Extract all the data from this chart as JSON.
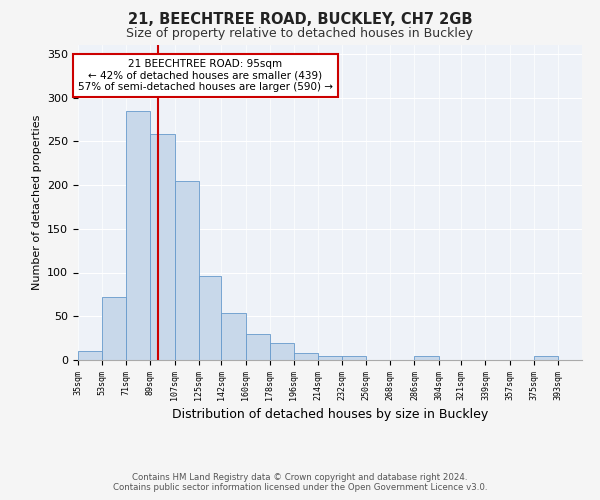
{
  "title_line1": "21, BEECHTREE ROAD, BUCKLEY, CH7 2GB",
  "title_line2": "Size of property relative to detached houses in Buckley",
  "xlabel": "Distribution of detached houses by size in Buckley",
  "ylabel": "Number of detached properties",
  "bin_edges": [
    35,
    53,
    71,
    89,
    107,
    125,
    142,
    160,
    178,
    196,
    214,
    232,
    250,
    268,
    286,
    304,
    321,
    339,
    357,
    375,
    393
  ],
  "bin_heights": [
    10,
    72,
    285,
    258,
    205,
    96,
    54,
    30,
    20,
    8,
    5,
    5,
    0,
    0,
    5,
    0,
    0,
    0,
    0,
    5
  ],
  "bar_color": "#c8d8ea",
  "bar_edge_color": "#6699cc",
  "property_size": 95,
  "property_line_color": "#cc0000",
  "annotation_text": "21 BEECHTREE ROAD: 95sqm\n← 42% of detached houses are smaller (439)\n57% of semi-detached houses are larger (590) →",
  "annotation_box_color": "#ffffff",
  "annotation_box_edge_color": "#cc0000",
  "ylim": [
    0,
    360
  ],
  "yticks": [
    0,
    50,
    100,
    150,
    200,
    250,
    300,
    350
  ],
  "footer_line1": "Contains HM Land Registry data © Crown copyright and database right 2024.",
  "footer_line2": "Contains public sector information licensed under the Open Government Licence v3.0.",
  "background_color": "#f5f5f5",
  "plot_background_color": "#eef2f8",
  "xlim_left": 35,
  "xlim_right": 393
}
